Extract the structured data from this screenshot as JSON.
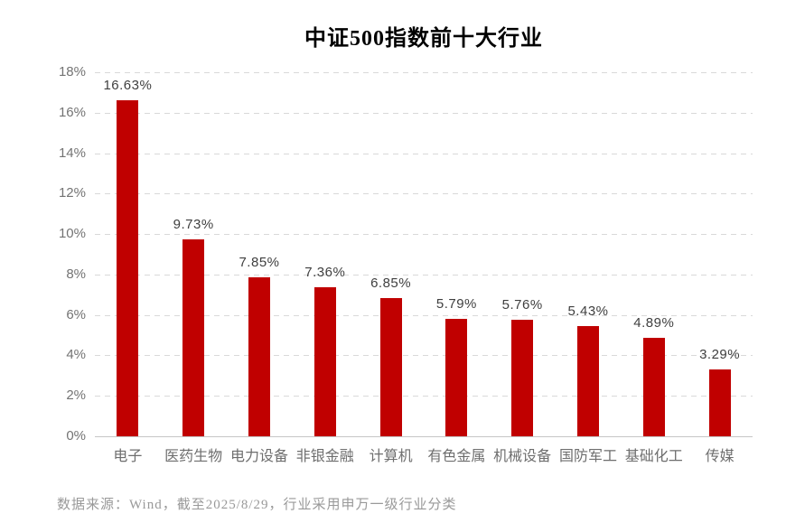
{
  "colors": {
    "bar": "#c00000",
    "grid": "#d9d9d9",
    "axis_line": "#c6c6c6",
    "axis_label": "#737373",
    "value_label": "#3f3f3f",
    "category_label": "#6e6e6e",
    "footer_text": "#999999",
    "title": "#000000",
    "bg": "#ffffff"
  },
  "footer": {
    "source_note": "数据来源：Wind，截至2025/8/29，行业采用申万一级行业分类"
  },
  "chart_data": {
    "type": "bar",
    "title": "中证500指数前十大行业",
    "categories": [
      "电子",
      "医药生物",
      "电力设备",
      "非银金融",
      "计算机",
      "有色金属",
      "机械设备",
      "国防军工",
      "基础化工",
      "传媒"
    ],
    "values": [
      16.63,
      9.73,
      7.85,
      7.36,
      6.85,
      5.79,
      5.76,
      5.43,
      4.89,
      3.29
    ],
    "value_labels": [
      "16.63%",
      "9.73%",
      "7.85%",
      "7.36%",
      "6.85%",
      "5.79%",
      "5.76%",
      "5.43%",
      "4.89%",
      "3.29%"
    ],
    "xlabel": "",
    "ylabel": "",
    "ylim": [
      0,
      18
    ],
    "ytick_values": [
      0,
      2,
      4,
      6,
      8,
      10,
      12,
      14,
      16,
      18
    ],
    "ytick_labels": [
      "0%",
      "2%",
      "4%",
      "6%",
      "8%",
      "10%",
      "12%",
      "14%",
      "16%",
      "18%"
    ],
    "grid": "horizontal-dashed",
    "legend": "none",
    "bar_color": "#c00000"
  }
}
